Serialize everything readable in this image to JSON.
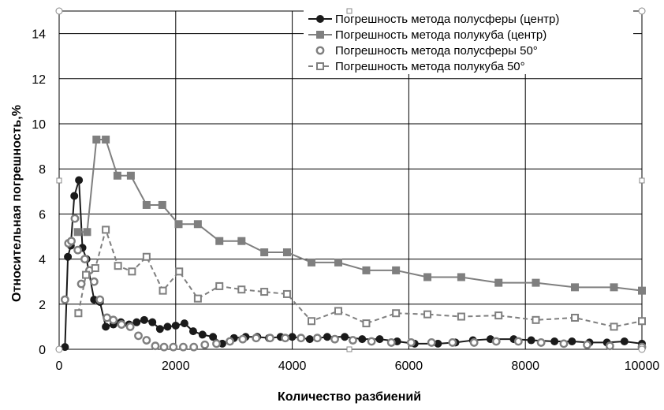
{
  "chart_data": {
    "type": "line",
    "title": "",
    "xlabel": "Количество разбиений",
    "ylabel": "Относительная погрешность,%",
    "xlim": [
      0,
      10000
    ],
    "ylim": [
      0,
      15
    ],
    "xticks": [
      0,
      2000,
      4000,
      6000,
      8000,
      10000
    ],
    "yticks": [
      0,
      2,
      4,
      6,
      8,
      10,
      12,
      14
    ],
    "grid": true,
    "legend_position": "top-right",
    "series": [
      {
        "name": "Погрешность метода полусферы (центр)",
        "marker": "filled-circle",
        "line": "solid",
        "color": "#1a1a1a",
        "x": [
          100,
          150,
          200,
          260,
          340,
          400,
          470,
          600,
          700,
          800,
          930,
          1060,
          1200,
          1330,
          1460,
          1600,
          1730,
          1860,
          2000,
          2150,
          2300,
          2460,
          2640,
          2800,
          3000,
          3200,
          3400,
          3600,
          3800,
          4000,
          4300,
          4600,
          4900,
          5200,
          5500,
          5800,
          6100,
          6500,
          6800,
          7100,
          7400,
          7800,
          8100,
          8500,
          8800,
          9100,
          9400,
          9700,
          10000
        ],
        "y": [
          0.1,
          4.1,
          4.6,
          6.8,
          7.5,
          4.5,
          4.0,
          2.2,
          2.1,
          1.0,
          1.1,
          1.2,
          1.1,
          1.2,
          1.3,
          1.2,
          0.9,
          1.0,
          1.05,
          1.15,
          0.8,
          0.65,
          0.55,
          0.25,
          0.5,
          0.55,
          0.55,
          0.5,
          0.55,
          0.55,
          0.45,
          0.55,
          0.55,
          0.45,
          0.45,
          0.35,
          0.25,
          0.25,
          0.3,
          0.4,
          0.45,
          0.45,
          0.4,
          0.35,
          0.35,
          0.3,
          0.3,
          0.35,
          0.25
        ]
      },
      {
        "name": "Погрешность метода полукуба (центр)",
        "marker": "filled-square",
        "line": "solid",
        "color": "#7f7f7f",
        "x": [
          320,
          480,
          640,
          800,
          1000,
          1230,
          1500,
          1770,
          2050,
          2380,
          2750,
          3130,
          3520,
          3910,
          4330,
          4790,
          5270,
          5780,
          6320,
          6900,
          7540,
          8180,
          8850,
          9520,
          10000
        ],
        "y": [
          5.2,
          5.2,
          9.3,
          9.3,
          7.7,
          7.7,
          6.4,
          6.4,
          5.55,
          5.55,
          4.8,
          4.8,
          4.3,
          4.3,
          3.85,
          3.85,
          3.5,
          3.5,
          3.2,
          3.2,
          2.95,
          2.95,
          2.75,
          2.75,
          2.6
        ]
      },
      {
        "name": "Погрешность метода полусферы 50°",
        "marker": "open-circle",
        "line": "none",
        "color": "#7f7f7f",
        "x": [
          100,
          160,
          210,
          270,
          320,
          380,
          440,
          520,
          600,
          700,
          820,
          930,
          1070,
          1220,
          1360,
          1500,
          1650,
          1800,
          1960,
          2130,
          2310,
          2500,
          2700,
          2930,
          3150,
          3380,
          3620,
          3880,
          4150,
          4430,
          4730,
          5040,
          5360,
          5700,
          6040,
          6390,
          6750,
          7120,
          7500,
          7880,
          8270,
          8660,
          9060,
          9450,
          10000
        ],
        "y": [
          2.2,
          4.7,
          4.8,
          5.8,
          4.4,
          2.9,
          4.0,
          3.5,
          3.0,
          2.2,
          1.4,
          1.3,
          1.1,
          1.0,
          0.6,
          0.4,
          0.15,
          0.1,
          0.1,
          0.1,
          0.1,
          0.2,
          0.25,
          0.35,
          0.45,
          0.5,
          0.5,
          0.5,
          0.5,
          0.5,
          0.45,
          0.4,
          0.35,
          0.3,
          0.3,
          0.3,
          0.3,
          0.3,
          0.35,
          0.35,
          0.3,
          0.25,
          0.2,
          0.15,
          0.1
        ]
      },
      {
        "name": "Погрешность метода полукуба 50°",
        "marker": "open-square",
        "line": "dashed",
        "color": "#7f7f7f",
        "x": [
          330,
          460,
          620,
          800,
          1010,
          1250,
          1500,
          1780,
          2060,
          2380,
          2750,
          3130,
          3520,
          3910,
          4330,
          4790,
          5270,
          5780,
          6320,
          6900,
          7540,
          8180,
          8850,
          9520,
          10000
        ],
        "y": [
          1.6,
          3.3,
          3.6,
          5.3,
          3.7,
          3.45,
          4.1,
          2.6,
          3.45,
          2.25,
          2.8,
          2.65,
          2.55,
          2.45,
          1.25,
          1.7,
          1.15,
          1.6,
          1.55,
          1.45,
          1.5,
          1.3,
          1.4,
          1.0,
          1.25
        ]
      }
    ]
  }
}
